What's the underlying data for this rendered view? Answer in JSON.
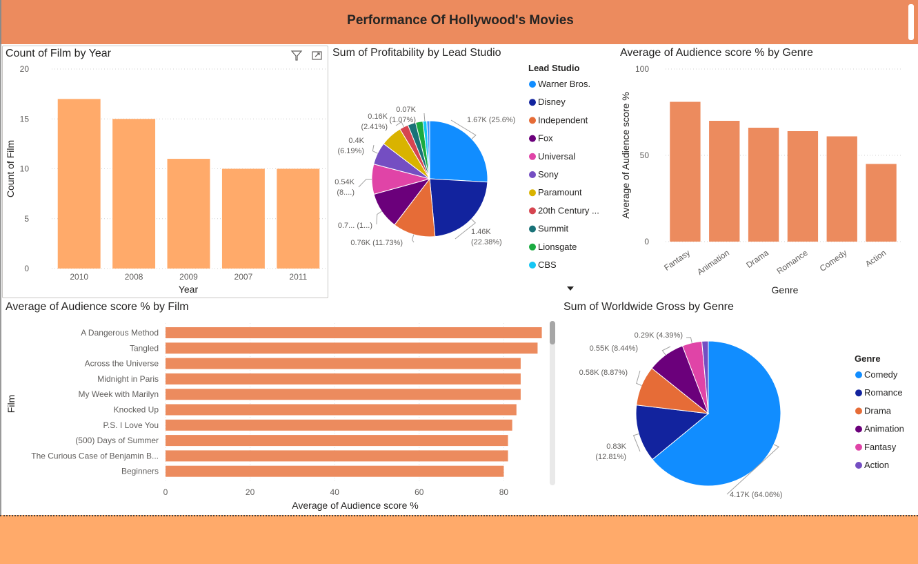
{
  "header": {
    "title": "Performance Of Hollywood's Movies"
  },
  "visuals": {
    "count_by_year": "Count of Film by Year",
    "profit_by_studio": "Sum of Profitability by Lead Studio",
    "score_by_genre": "Average of Audience score % by Genre",
    "score_by_film": "Average of Audience score % by Film",
    "gross_by_genre": "Sum of Worldwide Gross by Genre"
  },
  "chart_data": [
    {
      "id": "count_by_year",
      "type": "bar",
      "title": "Count of Film by Year",
      "xlabel": "Year",
      "ylabel": "Count of Film",
      "categories": [
        "2010",
        "2008",
        "2009",
        "2007",
        "2011"
      ],
      "values": [
        17,
        15,
        11,
        10,
        10
      ],
      "ylim": [
        0,
        20
      ],
      "yticks": [
        0,
        5,
        10,
        15,
        20
      ],
      "color": "#FFAA6A",
      "grid": true
    },
    {
      "id": "profit_by_studio",
      "type": "pie",
      "title": "Sum of Profitability by Lead Studio",
      "legend_title": "Lead Studio",
      "legend_position": "right",
      "slices": [
        {
          "name": "Warner Bros.",
          "value": 25.6,
          "label": "1.67K (25.6%)",
          "color": "#118DFF"
        },
        {
          "name": "Disney",
          "value": 22.38,
          "label": "1.46K (22.38%)",
          "color": "#12239E"
        },
        {
          "name": "Independent",
          "value": 11.73,
          "label": "0.76K (11.73%)",
          "color": "#E66C37"
        },
        {
          "name": "Fox",
          "value": 10.2,
          "label": "0.7... (1...)",
          "color": "#6B007B"
        },
        {
          "name": "Universal",
          "value": 8.3,
          "label": "0.54K (8....)",
          "color": "#E044A7"
        },
        {
          "name": "Sony",
          "value": 6.19,
          "label": "0.4K (6.19%)",
          "color": "#744EC2"
        },
        {
          "name": "Paramount",
          "value": 6.0,
          "label": "",
          "color": "#D9B300"
        },
        {
          "name": "20th Century ...",
          "value": 2.41,
          "label": "0.16K (2.41%)",
          "color": "#D64550"
        },
        {
          "name": "Summit",
          "value": 2.2,
          "label": "",
          "color": "#197278"
        },
        {
          "name": "Lionsgate",
          "value": 2.0,
          "label": "",
          "color": "#1AAB40"
        },
        {
          "name": "CBS",
          "value": 1.07,
          "label": "0.07K (1.07%)",
          "color": "#15C6F4"
        },
        {
          "name": "",
          "value": 0.8,
          "label": "",
          "color": "#4092FF"
        }
      ]
    },
    {
      "id": "score_by_genre",
      "type": "bar",
      "title": "Average of Audience score % by Genre",
      "xlabel": "Genre",
      "ylabel": "Average of Audience score %",
      "categories": [
        "Fantasy",
        "Animation",
        "Drama",
        "Romance",
        "Comedy",
        "Action"
      ],
      "values": [
        81,
        70,
        66,
        64,
        61,
        45
      ],
      "ylim": [
        0,
        100
      ],
      "yticks": [
        0,
        50,
        100
      ],
      "color": "#EC8B5E",
      "grid": true
    },
    {
      "id": "score_by_film",
      "type": "bar",
      "orientation": "horizontal",
      "title": "Average of Audience score % by Film",
      "xlabel": "Average of Audience score %",
      "ylabel": "Film",
      "categories": [
        "A Dangerous Method",
        "Tangled",
        "Across the Universe",
        "Midnight in Paris",
        "My Week with Marilyn",
        "Knocked Up",
        "P.S. I Love You",
        "(500) Days of Summer",
        "The Curious Case of Benjamin B...",
        "Beginners"
      ],
      "values": [
        89,
        88,
        84,
        84,
        84,
        83,
        82,
        81,
        81,
        80
      ],
      "xlim": [
        0,
        90
      ],
      "xticks": [
        0,
        20,
        40,
        60,
        80
      ],
      "color": "#EC8B5E",
      "grid": true
    },
    {
      "id": "gross_by_genre",
      "type": "pie",
      "title": "Sum of Worldwide Gross by Genre",
      "legend_title": "Genre",
      "legend_position": "right",
      "slices": [
        {
          "name": "Comedy",
          "value": 64.06,
          "label": "4.17K (64.06%)",
          "color": "#118DFF"
        },
        {
          "name": "Romance",
          "value": 12.81,
          "label": "0.83K (12.81%)",
          "color": "#12239E"
        },
        {
          "name": "Drama",
          "value": 8.87,
          "label": "0.58K (8.87%)",
          "color": "#E66C37"
        },
        {
          "name": "Animation",
          "value": 8.44,
          "label": "0.55K (8.44%)",
          "color": "#6B007B"
        },
        {
          "name": "Fantasy",
          "value": 4.39,
          "label": "0.29K (4.39%)",
          "color": "#E044A7"
        },
        {
          "name": "Action",
          "value": 1.43,
          "label": "",
          "color": "#744EC2"
        }
      ]
    }
  ]
}
